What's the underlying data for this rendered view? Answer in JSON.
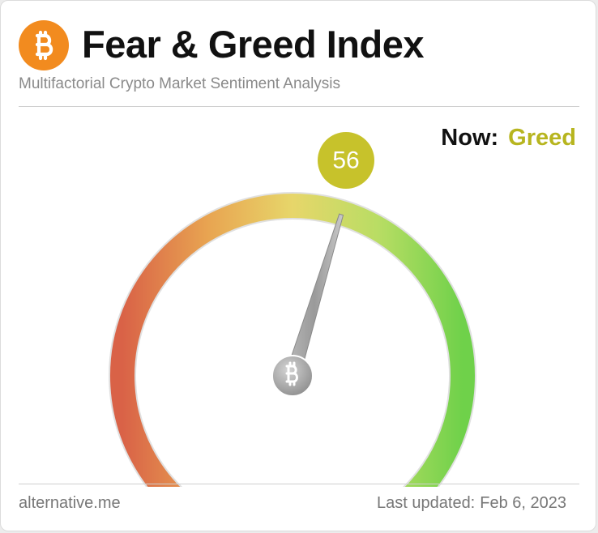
{
  "header": {
    "logo_icon": "bitcoin-icon",
    "title": "Fear & Greed Index",
    "subtitle": "Multifactorial Crypto Market Sentiment Analysis"
  },
  "status": {
    "now_label": "Now:",
    "classification": "Greed",
    "classification_color": "#b7b51f"
  },
  "gauge": {
    "value": 56,
    "value_text": "56",
    "min": 0,
    "max": 100,
    "badge_color": "#c7c22b",
    "gradient_colors": [
      "#d96247",
      "#e8a451",
      "#e7d66a",
      "#b9dd64",
      "#6fd14a"
    ],
    "hub_icon": "bitcoin-icon"
  },
  "footer": {
    "source": "alternative.me",
    "updated_label": "Last updated:",
    "updated_date": "Feb 6, 2023"
  }
}
